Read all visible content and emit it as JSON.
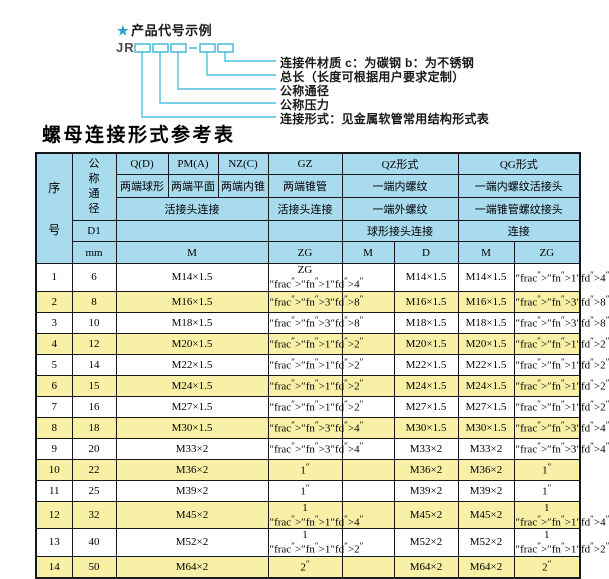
{
  "diagram": {
    "star": "★",
    "title": "产品代号示例",
    "prefix": "JR",
    "labels": [
      "连接件材质  c：为碳钢  b：为不锈钢",
      "总长（长度可根据用户要求定制）",
      "公称通径",
      "公称压力",
      "连接形式：见金属软管常用结构形式表"
    ],
    "line_color": "#4fc0dd"
  },
  "table_title": "螺母连接形式参考表",
  "colors": {
    "header_bg": "#a9dbef",
    "alt_row_bg": "#f7f0a6",
    "border": "#15191c",
    "accent_cyan": "#4fc0dd",
    "star_blue": "#2d9fd0"
  },
  "table": {
    "header": {
      "seq": "序号",
      "dn": "公称通径",
      "d1": "D1",
      "unit": "mm",
      "codes": [
        "Q(D)",
        "PM(A)",
        "NZ(C)",
        "GZ",
        "QZ形式",
        "QG形式"
      ],
      "end_types": [
        "两端球形",
        "两端平面",
        "两端内锥",
        "两端锥管",
        "一端内螺纹",
        "一端内螺纹活接头"
      ],
      "conn_types": [
        "活接头连接",
        "活接头连接",
        "一端外螺纹",
        "一端锥管螺纹接头"
      ],
      "conn_types2": [
        "球形接头连接",
        "连接"
      ],
      "thread_units": [
        "M",
        "ZG",
        "M",
        "D",
        "M",
        "ZG"
      ]
    },
    "rows": [
      {
        "seq": "1",
        "dn": "6",
        "m": "M14×1.5",
        "gz": "ZG 1/4\"",
        "qz_m": "",
        "qz_d": "M14×1.5",
        "qg_m": "M14×1.5",
        "qg_zg": "1/4\""
      },
      {
        "seq": "2",
        "dn": "8",
        "m": "M16×1.5",
        "gz": "3/8\"",
        "qz_m": "",
        "qz_d": "M16×1.5",
        "qg_m": "M16×1.5",
        "qg_zg": "3/8\""
      },
      {
        "seq": "3",
        "dn": "10",
        "m": "M18×1.5",
        "gz": "3/8\"",
        "qz_m": "",
        "qz_d": "M18×1.5",
        "qg_m": "M18×1.5",
        "qg_zg": "3/8\""
      },
      {
        "seq": "4",
        "dn": "12",
        "m": "M20×1.5",
        "gz": "1/2\"",
        "qz_m": "",
        "qz_d": "M20×1.5",
        "qg_m": "M20×1.5",
        "qg_zg": "1/2\""
      },
      {
        "seq": "5",
        "dn": "14",
        "m": "M22×1.5",
        "gz": "1/2\"",
        "qz_m": "",
        "qz_d": "M22×1.5",
        "qg_m": "M22×1.5",
        "qg_zg": "1/2\""
      },
      {
        "seq": "6",
        "dn": "15",
        "m": "M24×1.5",
        "gz": "1/2\"",
        "qz_m": "",
        "qz_d": "M24×1.5",
        "qg_m": "M24×1.5",
        "qg_zg": "1/2\""
      },
      {
        "seq": "7",
        "dn": "16",
        "m": "M27×1.5",
        "gz": "1/2\"",
        "qz_m": "",
        "qz_d": "M27×1.5",
        "qg_m": "M27×1.5",
        "qg_zg": "1/2\""
      },
      {
        "seq": "8",
        "dn": "18",
        "m": "M30×1.5",
        "gz": "3/4\"",
        "qz_m": "",
        "qz_d": "M30×1.5",
        "qg_m": "M30×1.5",
        "qg_zg": "3/4\""
      },
      {
        "seq": "9",
        "dn": "20",
        "m": "M33×2",
        "gz": "3/4\"",
        "qz_m": "",
        "qz_d": "M33×2",
        "qg_m": "M33×2",
        "qg_zg": "3/4\""
      },
      {
        "seq": "10",
        "dn": "22",
        "m": "M36×2",
        "gz": "1\"",
        "qz_m": "",
        "qz_d": "M36×2",
        "qg_m": "M36×2",
        "qg_zg": "1\""
      },
      {
        "seq": "11",
        "dn": "25",
        "m": "M39×2",
        "gz": "1\"",
        "qz_m": "",
        "qz_d": "M39×2",
        "qg_m": "M39×2",
        "qg_zg": "1\""
      },
      {
        "seq": "12",
        "dn": "32",
        "m": "M45×2",
        "gz": "1 1/4\"",
        "qz_m": "",
        "qz_d": "M45×2",
        "qg_m": "M45×2",
        "qg_zg": "1 1/4\""
      },
      {
        "seq": "13",
        "dn": "40",
        "m": "M52×2",
        "gz": "1 1/2\"",
        "qz_m": "",
        "qz_d": "M52×2",
        "qg_m": "M52×2",
        "qg_zg": "1 1/2\""
      },
      {
        "seq": "14",
        "dn": "50",
        "m": "M64×2",
        "gz": "2\"",
        "qz_m": "",
        "qz_d": "M64×2",
        "qg_m": "M64×2",
        "qg_zg": "2\""
      }
    ]
  }
}
